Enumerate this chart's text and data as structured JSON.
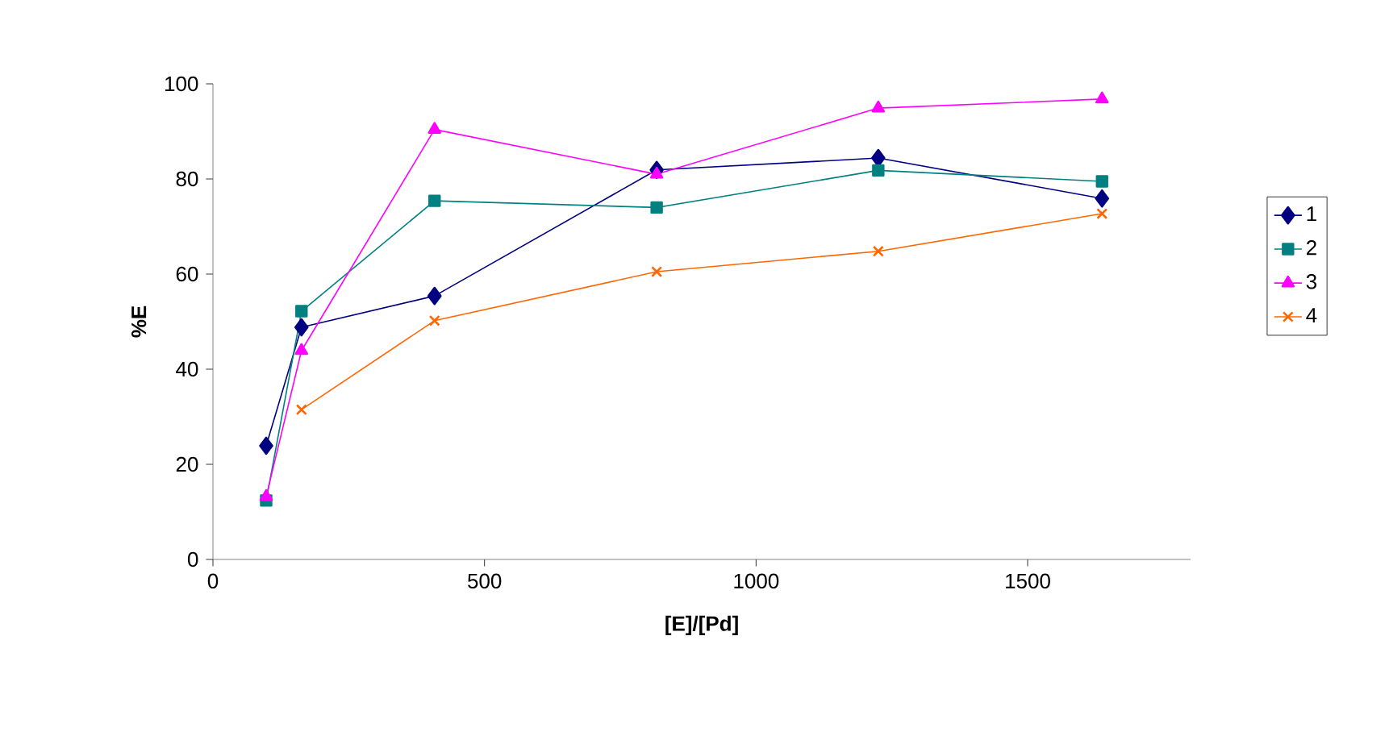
{
  "chart_data": {
    "type": "line",
    "xlabel": "[E]/[Pd]",
    "ylabel": "%E",
    "xlim": [
      0,
      1800
    ],
    "xticks": [
      0,
      500,
      1000,
      1500
    ],
    "ylim": [
      0,
      100
    ],
    "yticks": [
      0,
      20,
      40,
      60,
      80,
      100
    ],
    "grid": false,
    "legend": "right",
    "line_style": "solid",
    "series": [
      {
        "name": "1",
        "color": "#000080",
        "marker": "diamond",
        "x": [
          98,
          163,
          408,
          817,
          1225,
          1637
        ],
        "values": [
          23.9,
          48.8,
          55.4,
          81.9,
          84.4,
          75.9
        ]
      },
      {
        "name": "2",
        "color": "#008080",
        "marker": "square",
        "x": [
          98,
          163,
          408,
          817,
          1225,
          1637
        ],
        "values": [
          12.4,
          52.2,
          75.4,
          74.0,
          81.8,
          79.5
        ]
      },
      {
        "name": "3",
        "color": "#ff00ff",
        "marker": "triangle",
        "x": [
          98,
          163,
          408,
          817,
          1225,
          1637
        ],
        "values": [
          13.2,
          43.9,
          90.4,
          81.0,
          94.9,
          96.8
        ]
      },
      {
        "name": "4",
        "color": "#ff6600",
        "marker": "cross",
        "x": [
          163,
          408,
          817,
          1225,
          1637
        ],
        "values": [
          31.5,
          50.2,
          60.5,
          64.8,
          72.7
        ]
      }
    ]
  }
}
